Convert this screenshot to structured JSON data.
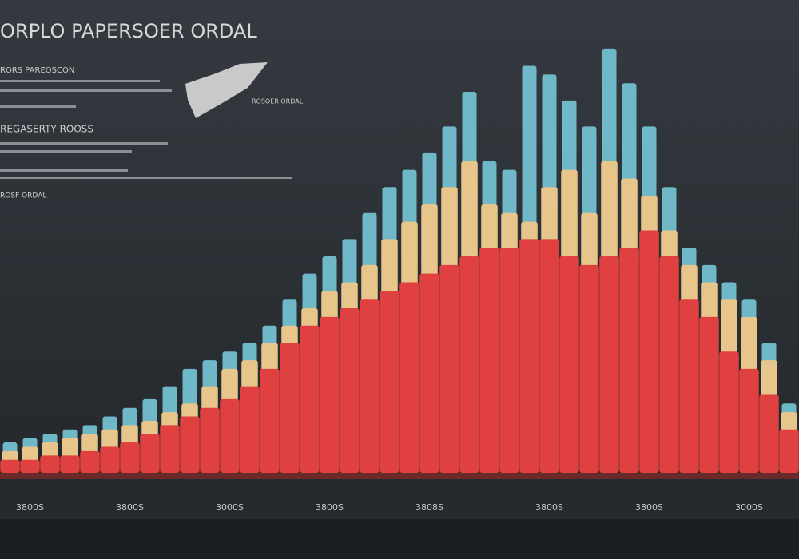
{
  "chart_data": {
    "type": "bar",
    "title": "ORPLO PAPERSOER ORDAL",
    "subtitle": "REGASERTY ROOSS",
    "annotations": [
      "RORS PAREOSCON",
      "ROSF ORDAL",
      "ROSOER ORDAL"
    ],
    "categories": [
      null,
      "3800S",
      null,
      null,
      null,
      null,
      "3800S",
      null,
      null,
      null,
      null,
      "3000S",
      null,
      null,
      null,
      null,
      "3800S",
      null,
      null,
      null,
      null,
      "3808S",
      null,
      null,
      null,
      null,
      null,
      "3800S",
      null,
      null,
      null,
      null,
      "3800S",
      null,
      null,
      null,
      null,
      "3000S",
      null,
      null
    ],
    "ylim": [
      0,
      100
    ],
    "series": [
      {
        "color": "#6fb8c8",
        "values": [
          7,
          8,
          9,
          10,
          11,
          13,
          15,
          17,
          20,
          24,
          26,
          28,
          30,
          34,
          40,
          46,
          50,
          54,
          60,
          66,
          70,
          74,
          80,
          88,
          72,
          70,
          94,
          92,
          86,
          80,
          98,
          90,
          80,
          66,
          52,
          48,
          44,
          40,
          30,
          16
        ]
      },
      {
        "color": "#e8c58a",
        "values": [
          5,
          6,
          7,
          8,
          9,
          10,
          11,
          12,
          14,
          16,
          20,
          24,
          26,
          30,
          34,
          38,
          42,
          44,
          48,
          54,
          58,
          62,
          66,
          72,
          62,
          60,
          58,
          66,
          70,
          60,
          72,
          68,
          64,
          56,
          48,
          44,
          40,
          36,
          26,
          14
        ]
      },
      {
        "color": "#e0403f",
        "values": [
          3,
          3,
          4,
          4,
          5,
          6,
          7,
          9,
          11,
          13,
          15,
          17,
          20,
          24,
          30,
          34,
          36,
          38,
          40,
          42,
          44,
          46,
          48,
          50,
          52,
          52,
          54,
          54,
          50,
          48,
          50,
          52,
          56,
          50,
          40,
          36,
          28,
          24,
          18,
          10
        ]
      }
    ]
  }
}
